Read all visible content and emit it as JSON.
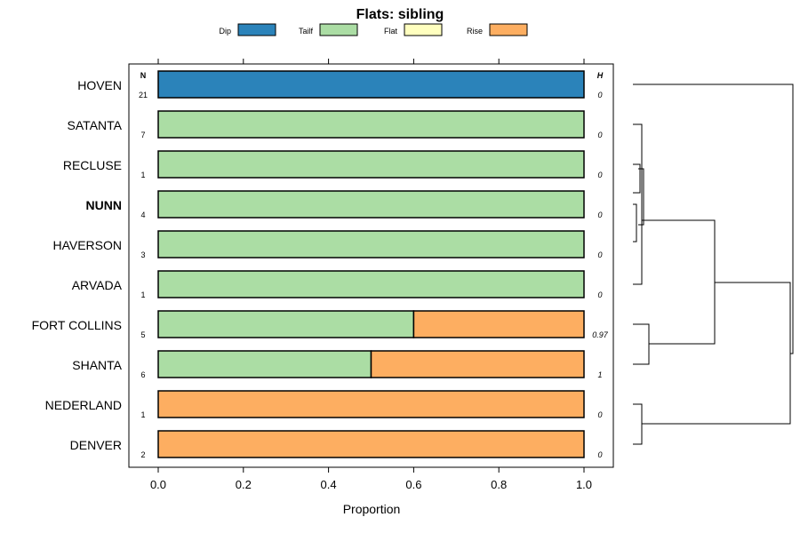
{
  "chart_data": {
    "type": "bar",
    "orientation": "horizontal",
    "stacked": true,
    "title": "Flats: sibling",
    "xlabel": "Proportion",
    "ylabel": "",
    "xlim": [
      0,
      1
    ],
    "xticks": [
      "0.0",
      "0.2",
      "0.4",
      "0.6",
      "0.8",
      "1.0"
    ],
    "n_header": "N",
    "h_header": "H",
    "legend": [
      {
        "name": "Dip",
        "color": "#2b83ba"
      },
      {
        "name": "Tailf",
        "color": "#abdda4"
      },
      {
        "name": "Flat",
        "color": "#ffffbf"
      },
      {
        "name": "Rise",
        "color": "#fdae61"
      }
    ],
    "categories": [
      "HOVEN",
      "SATANTA",
      "RECLUSE",
      "NUNN",
      "HAVERSON",
      "ARVADA",
      "FORT COLLINS",
      "SHANTA",
      "NEDERLAND",
      "DENVER"
    ],
    "highlighted": "NUNN",
    "n": [
      "21",
      "7",
      "1",
      "4",
      "3",
      "1",
      "5",
      "6",
      "1",
      "2"
    ],
    "h": [
      "0",
      "0",
      "0",
      "0",
      "0",
      "0",
      "0.97",
      "1",
      "0",
      "0"
    ],
    "series": [
      {
        "name": "Dip",
        "values": [
          1,
          0,
          0,
          0,
          0,
          0,
          0,
          0,
          0,
          0
        ]
      },
      {
        "name": "Tailf",
        "values": [
          0,
          1,
          1,
          1,
          1,
          1,
          0.6,
          0.5,
          0,
          0
        ]
      },
      {
        "name": "Flat",
        "values": [
          0,
          0,
          0,
          0,
          0,
          0,
          0,
          0,
          0,
          0
        ]
      },
      {
        "name": "Rise",
        "values": [
          0,
          0,
          0,
          0,
          0,
          0,
          0.4,
          0.5,
          1,
          1
        ]
      }
    ]
  }
}
